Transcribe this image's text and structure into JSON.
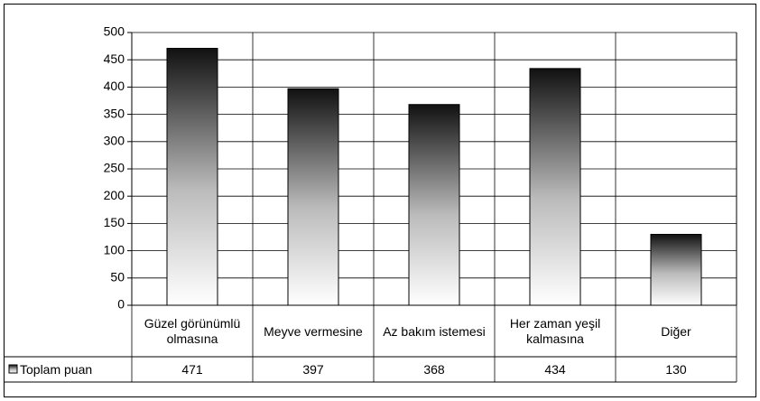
{
  "chart_data": {
    "type": "bar",
    "categories": [
      "Güzel görünümlü olmasına",
      "Meyve vermesine",
      "Az bakım istemesi",
      "Her zaman yeşil kalmasına",
      "Diğer"
    ],
    "series": [
      {
        "name": "Toplam puan",
        "color": "#000000",
        "values": [
          471,
          397,
          368,
          434,
          130
        ]
      }
    ],
    "ylim": [
      0,
      500
    ],
    "yticks": [
      0,
      50,
      100,
      150,
      200,
      250,
      300,
      350,
      400,
      450,
      500
    ],
    "grid": true,
    "legend": "left"
  }
}
